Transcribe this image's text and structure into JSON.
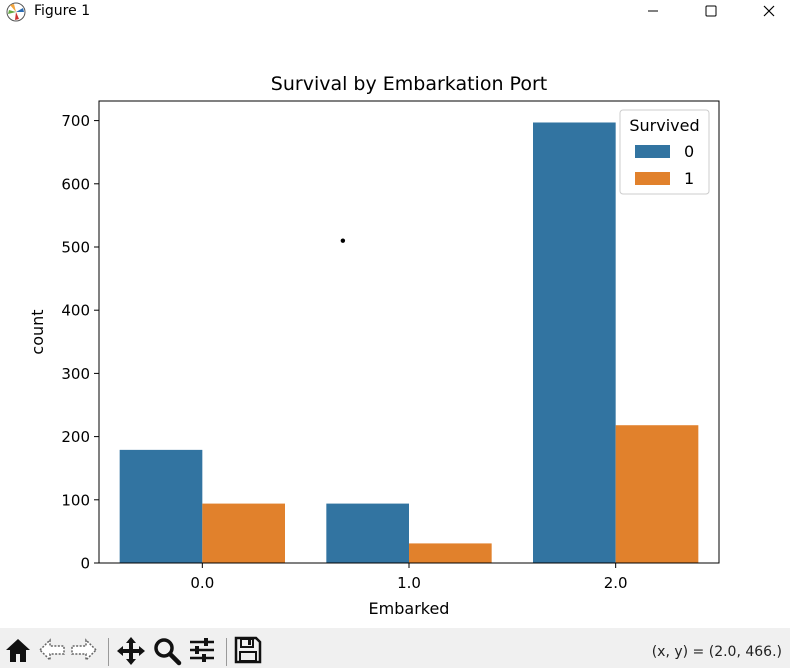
{
  "window": {
    "title": "Figure 1",
    "app_icon": "matplotlib-logo-icon",
    "buttons": [
      "minimize-icon",
      "maximize-icon",
      "close-icon"
    ]
  },
  "toolbar": {
    "tools": [
      "home-icon",
      "back-arrow-icon",
      "forward-arrow-icon",
      "pan-move-icon",
      "zoom-magnifier-icon",
      "configure-subplots-icon",
      "save-floppy-icon"
    ],
    "coords_text": "(x, y) = (2.0, 466.)"
  },
  "chart_data": {
    "type": "bar",
    "title": "Survival by Embarkation Port",
    "xlabel": "Embarked",
    "ylabel": "count",
    "categories": [
      "0.0",
      "1.0",
      "2.0"
    ],
    "series": [
      {
        "name": "0",
        "values": [
          179,
          94,
          697
        ],
        "color": "#3274a1"
      },
      {
        "name": "1",
        "values": [
          94,
          31,
          218
        ],
        "color": "#e1812c"
      }
    ],
    "ylim": [
      0,
      731
    ],
    "yticks": [
      0,
      100,
      200,
      300,
      400,
      500,
      600,
      700
    ],
    "legend": {
      "title": "Survived",
      "placement": "upper right"
    },
    "grid": false,
    "annotation_point": {
      "x": 0.68,
      "y": 510
    }
  }
}
